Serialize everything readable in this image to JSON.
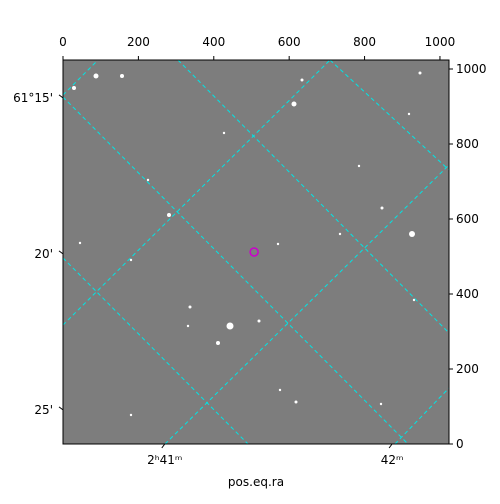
{
  "chart_data": {
    "type": "image",
    "xlabel": "pos.eq.ra",
    "xlim": [
      0,
      1024
    ],
    "ylim": [
      0,
      1024
    ],
    "xticks": [
      0,
      200,
      400,
      600,
      800,
      1000
    ],
    "yticks": [
      0,
      200,
      400,
      600,
      800,
      1000
    ],
    "world_xticks": [
      {
        "value": 270,
        "label": "2ʰ41ᵐ"
      },
      {
        "value": 873,
        "label": "42ᵐ"
      }
    ],
    "world_yticks": [
      {
        "value": 923,
        "label": "61°15'"
      },
      {
        "value": 507,
        "label": "20'"
      },
      {
        "value": 91,
        "label": "25'"
      }
    ],
    "marker": {
      "x": 507,
      "y": 512,
      "color": "#cc00cc"
    },
    "grid_color": "#00e5e5"
  }
}
